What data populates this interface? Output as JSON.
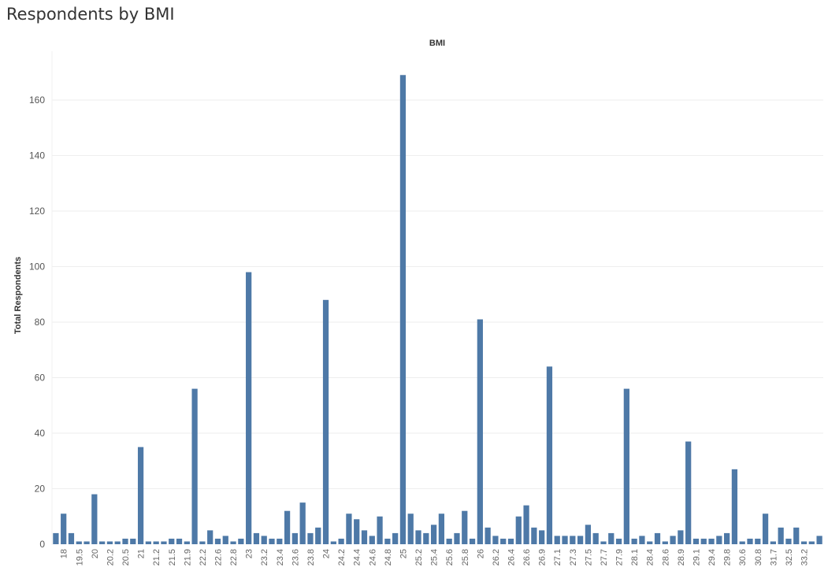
{
  "page": {
    "title": "Respondents by BMI"
  },
  "chart_data": {
    "type": "bar",
    "title": "Respondents by BMI",
    "column_header": "BMI",
    "xlabel": "",
    "ylabel": "Total Respondents",
    "ylim": [
      0,
      175
    ],
    "yticks": [
      0,
      20,
      40,
      60,
      80,
      100,
      120,
      140,
      160
    ],
    "grid": true,
    "bar_color": "#4e79a7",
    "x_tick_labels": [
      "18",
      "19.5",
      "20",
      "20.2",
      "20.5",
      "21",
      "21.2",
      "21.5",
      "21.9",
      "22.2",
      "22.6",
      "22.8",
      "23",
      "23.2",
      "23.4",
      "23.6",
      "23.8",
      "24",
      "24.2",
      "24.4",
      "24.6",
      "24.8",
      "25",
      "25.2",
      "25.4",
      "25.6",
      "25.8",
      "26",
      "26.2",
      "26.4",
      "26.6",
      "26.9",
      "27.1",
      "27.3",
      "27.5",
      "27.7",
      "27.9",
      "28.1",
      "28.4",
      "28.6",
      "28.9",
      "29.1",
      "29.4",
      "29.8",
      "30.6",
      "30.8",
      "31.7",
      "32.5",
      "33.2"
    ],
    "values": [
      4,
      11,
      4,
      1,
      1,
      18,
      1,
      1,
      1,
      2,
      2,
      35,
      1,
      1,
      1,
      2,
      2,
      1,
      56,
      1,
      5,
      2,
      3,
      1,
      2,
      98,
      4,
      3,
      2,
      2,
      12,
      4,
      15,
      4,
      6,
      88,
      1,
      2,
      11,
      9,
      5,
      3,
      10,
      2,
      4,
      169,
      11,
      5,
      4,
      7,
      11,
      2,
      4,
      12,
      2,
      81,
      6,
      3,
      2,
      2,
      10,
      14,
      6,
      5,
      64,
      3,
      3,
      3,
      3,
      7,
      4,
      1,
      4,
      2,
      56,
      2,
      3,
      1,
      4,
      1,
      3,
      5,
      37,
      2,
      2,
      2,
      3,
      4,
      27,
      1,
      2,
      2,
      11,
      1,
      6,
      2,
      6,
      1,
      1,
      3
    ]
  }
}
